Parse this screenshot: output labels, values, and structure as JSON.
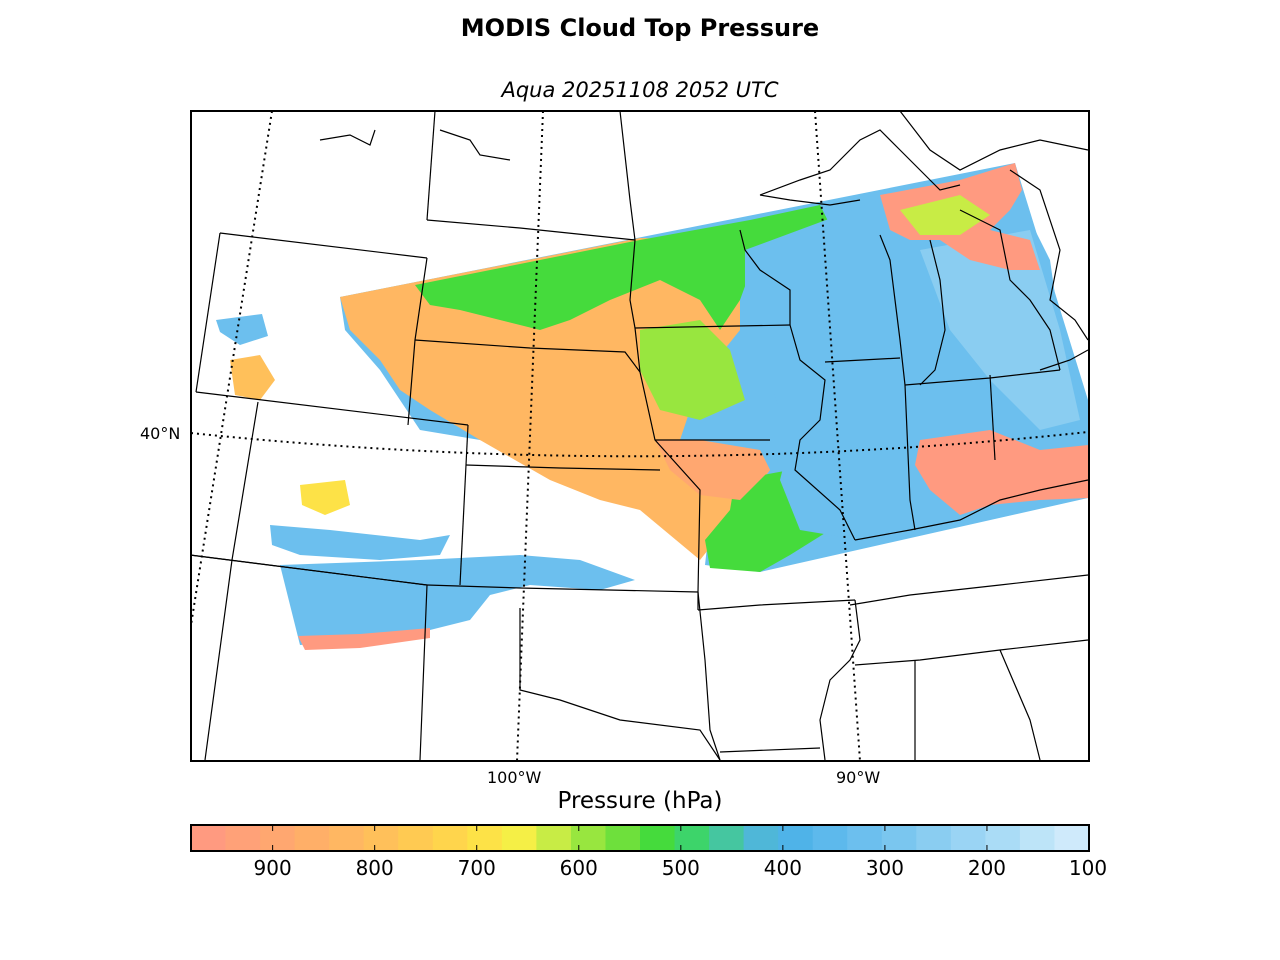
{
  "figure": {
    "title": "MODIS Cloud Top Pressure",
    "subtitle": "Aqua 20251108 2052 UTC"
  },
  "map": {
    "lat_labels": [
      {
        "text": "40°N"
      }
    ],
    "lon_labels": [
      {
        "text": "100°W"
      },
      {
        "text": "90°W"
      }
    ],
    "border_color": "#000000"
  },
  "colorbar": {
    "label": "Pressure (hPa)",
    "ticks": [
      "900",
      "800",
      "700",
      "600",
      "500",
      "400",
      "300",
      "200",
      "100"
    ],
    "range": [
      980,
      100
    ],
    "colors": [
      "#ff9a80",
      "#ffa178",
      "#ffa770",
      "#ffaf68",
      "#ffb762",
      "#ffc05a",
      "#ffca52",
      "#ffd54c",
      "#fde247",
      "#f5ef46",
      "#c8ec45",
      "#98e63f",
      "#6ee03c",
      "#45db3c",
      "#3dd46a",
      "#45c6a0",
      "#4fb7d8",
      "#4fb3e8",
      "#5db9ec",
      "#6cbfee",
      "#7ac6ef",
      "#8acdf1",
      "#9ad4f4",
      "#aadcf6",
      "#bde4f8",
      "#cfeafb"
    ]
  },
  "legend_colors": {
    "low_cloud": "#ff9a80",
    "mid_low": "#ffc05a",
    "mid": "#45db3c",
    "high": "#6cbfee"
  }
}
